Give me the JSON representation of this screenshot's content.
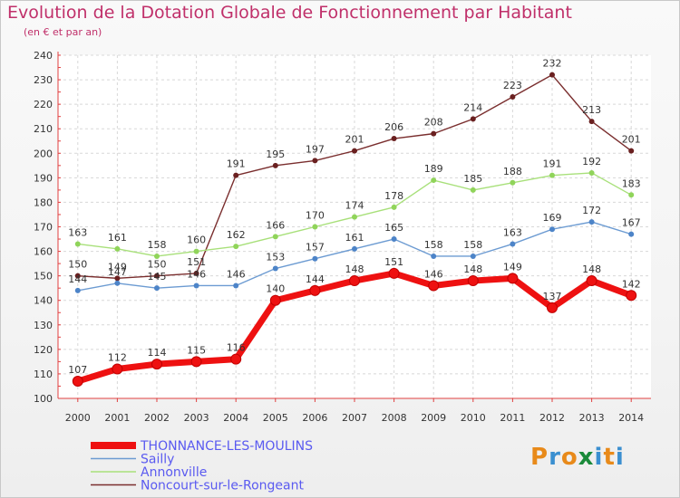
{
  "title": "Evolution de la Dotation Globale de Fonctionnement par Habitant",
  "subtitle": "(en € et par an)",
  "logo": {
    "text": "Proxiti"
  },
  "chart_data": {
    "type": "line",
    "title": "Evolution de la Dotation Globale de Fonctionnement par Habitant",
    "subtitle": "(en € et par an)",
    "xlabel": "",
    "ylabel": "",
    "ylim": [
      100,
      240
    ],
    "yticks": [
      100,
      110,
      120,
      130,
      140,
      150,
      160,
      170,
      180,
      190,
      200,
      210,
      220,
      230,
      240
    ],
    "grid": true,
    "legend_position": "bottom-left",
    "x": [
      "2000",
      "2001",
      "2002",
      "2003",
      "2004",
      "2005",
      "2006",
      "2007",
      "2008",
      "2009",
      "2010",
      "2011",
      "2012",
      "2013",
      "2014"
    ],
    "series": [
      {
        "name": "THONNANCE-LES-MOULINS",
        "color": "#ee1111",
        "marker": "#ee1111",
        "values": [
          107,
          112,
          114,
          115,
          116,
          140,
          144,
          148,
          151,
          146,
          148,
          149,
          137,
          148,
          142
        ]
      },
      {
        "name": "Sailly",
        "color": "#6c9bd2",
        "marker": "#4d84c8",
        "values": [
          144,
          147,
          145,
          146,
          146,
          153,
          157,
          161,
          165,
          158,
          158,
          163,
          169,
          172,
          167
        ]
      },
      {
        "name": "Annonville",
        "color": "#a8e07a",
        "marker": "#90d45a",
        "values": [
          163,
          161,
          158,
          160,
          162,
          166,
          170,
          174,
          178,
          189,
          185,
          188,
          191,
          192,
          183
        ]
      },
      {
        "name": "Noncourt-sur-le-Rongeant",
        "color": "#7a2e2e",
        "marker": "#6a2020",
        "values": [
          150,
          149,
          150,
          151,
          191,
          195,
          197,
          201,
          206,
          208,
          214,
          223,
          232,
          213,
          201
        ]
      }
    ]
  }
}
